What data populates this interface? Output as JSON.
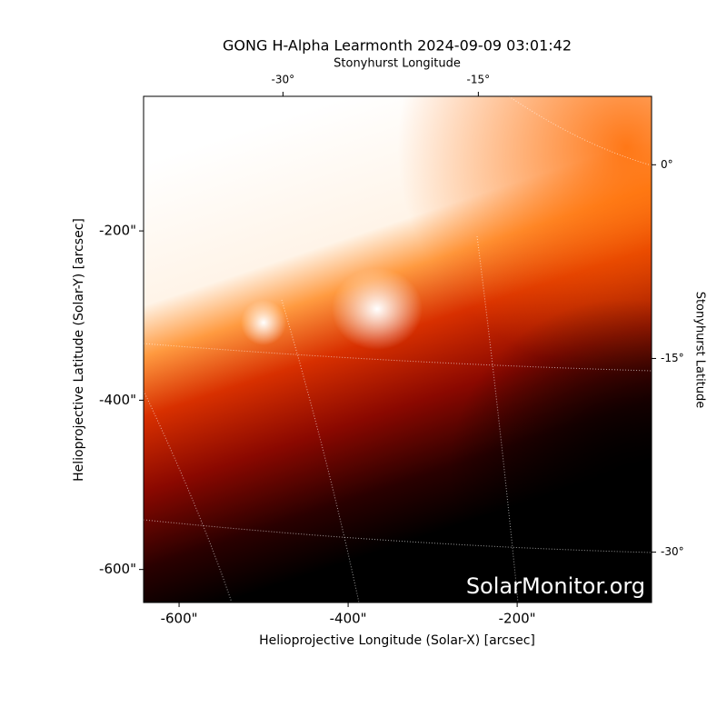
{
  "chart_data": {
    "type": "image",
    "title": "GONG H-Alpha Learmonth 2024-09-09 03:01:42",
    "xlabel": "Helioprojective Longitude (Solar-X) [arcsec]",
    "ylabel": "Helioprojective Latitude (Solar-Y) [arcsec]",
    "top_xlabel": "Stonyhurst Longitude",
    "right_ylabel": "Stonyhurst Latitude",
    "watermark": "SolarMonitor.org",
    "xlim": [
      -642,
      -41
    ],
    "ylim": [
      -639,
      -41
    ],
    "xticks": [
      {
        "value": -600,
        "label": "-600\""
      },
      {
        "value": -400,
        "label": "-400\""
      },
      {
        "value": -200,
        "label": "-200\""
      }
    ],
    "yticks": [
      {
        "value": -600,
        "label": "-600\""
      },
      {
        "value": -400,
        "label": "-400\""
      },
      {
        "value": -200,
        "label": "-200\""
      }
    ],
    "top_xlim": [
      -40.7,
      -1.7
    ],
    "top_xticks": [
      {
        "value": -30,
        "label": "-30°"
      },
      {
        "value": -15,
        "label": "-15°"
      }
    ],
    "y2lim": [
      -33.9,
      5.3
    ],
    "y2ticks": [
      {
        "value": 0,
        "label": "0°"
      },
      {
        "value": -15,
        "label": "-15°"
      },
      {
        "value": -30,
        "label": "-30°"
      }
    ]
  }
}
